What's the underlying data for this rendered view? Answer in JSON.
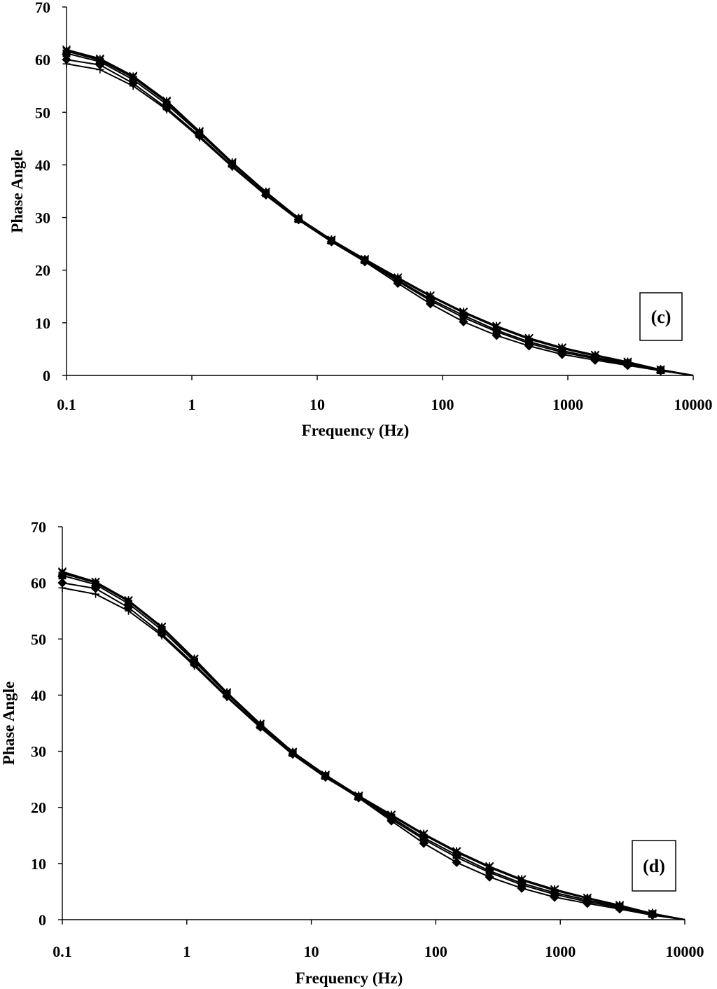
{
  "chart_data": [
    {
      "type": "line",
      "panel_label": "(c)",
      "xlabel": "Frequency (Hz)",
      "ylabel": "Phase Angle",
      "xscale": "log",
      "xlim": [
        0.1,
        10000
      ],
      "ylim": [
        0,
        70
      ],
      "x_ticks": [
        "0.1",
        "1",
        "10",
        "100",
        "1000",
        "10000"
      ],
      "y_ticks": [
        "0",
        "10",
        "20",
        "30",
        "40",
        "50",
        "60",
        "70"
      ],
      "grid": false,
      "legend": "none",
      "x": [
        0.1,
        0.185,
        0.34,
        0.63,
        1.15,
        2.1,
        3.9,
        7.1,
        13,
        24,
        44,
        80,
        147,
        270,
        490,
        900,
        1650,
        3000,
        5500,
        10000
      ],
      "series": [
        {
          "marker": "diamond",
          "values": [
            60.0,
            59.0,
            55.5,
            50.8,
            45.5,
            39.8,
            34.3,
            29.6,
            25.4,
            21.6,
            17.5,
            13.6,
            10.2,
            7.6,
            5.6,
            4.0,
            2.9,
            1.9,
            0.9,
            0.0
          ]
        },
        {
          "marker": "square",
          "values": [
            61.2,
            59.6,
            56.2,
            51.5,
            46.0,
            40.2,
            34.6,
            29.7,
            25.6,
            21.9,
            18.1,
            14.5,
            11.4,
            8.6,
            6.4,
            4.7,
            3.4,
            2.3,
            1.0,
            0.0
          ]
        },
        {
          "marker": "triangle",
          "values": [
            61.6,
            59.9,
            56.6,
            51.9,
            46.2,
            40.3,
            34.8,
            29.8,
            25.7,
            22.0,
            18.4,
            15.0,
            11.9,
            9.2,
            6.9,
            5.1,
            3.7,
            2.5,
            1.1,
            0.0
          ]
        },
        {
          "marker": "x",
          "values": [
            61.9,
            60.2,
            56.9,
            52.2,
            46.4,
            40.5,
            34.9,
            29.9,
            25.8,
            22.1,
            18.6,
            15.2,
            12.1,
            9.4,
            7.1,
            5.3,
            3.9,
            2.6,
            1.1,
            0.0
          ]
        },
        {
          "marker": "star",
          "values": [
            61.6,
            60.0,
            56.7,
            52.0,
            46.3,
            40.4,
            34.8,
            29.8,
            25.7,
            22.0,
            18.5,
            15.1,
            12.0,
            9.3,
            7.0,
            5.2,
            3.8,
            2.5,
            1.1,
            0.0
          ]
        },
        {
          "marker": "plus",
          "values": [
            59.2,
            58.1,
            55.0,
            50.5,
            45.2,
            39.6,
            34.2,
            29.5,
            25.4,
            21.8,
            17.9,
            14.2,
            11.0,
            8.3,
            6.1,
            4.4,
            3.2,
            2.1,
            0.9,
            0.0
          ]
        }
      ]
    },
    {
      "type": "line",
      "panel_label": "(d)",
      "xlabel": "Frequency (Hz)",
      "ylabel": "Phase Angle",
      "xscale": "log",
      "xlim": [
        0.1,
        10000
      ],
      "ylim": [
        0,
        70
      ],
      "x_ticks": [
        "0.1",
        "1",
        "10",
        "100",
        "1000",
        "10000"
      ],
      "y_ticks": [
        "0",
        "10",
        "20",
        "30",
        "40",
        "50",
        "60",
        "70"
      ],
      "grid": false,
      "legend": "none",
      "x": [
        0.1,
        0.185,
        0.34,
        0.63,
        1.15,
        2.1,
        3.9,
        7.1,
        13,
        24,
        44,
        80,
        147,
        270,
        490,
        900,
        1650,
        3000,
        5500,
        10000
      ],
      "series": [
        {
          "marker": "diamond",
          "values": [
            60.0,
            59.0,
            55.6,
            50.9,
            45.5,
            39.8,
            34.3,
            29.5,
            25.4,
            21.7,
            17.6,
            13.6,
            10.2,
            7.6,
            5.6,
            4.0,
            2.9,
            1.9,
            0.8,
            0.0
          ]
        },
        {
          "marker": "square",
          "values": [
            61.3,
            59.7,
            56.3,
            51.6,
            46.0,
            40.2,
            34.6,
            29.7,
            25.6,
            21.9,
            18.2,
            14.6,
            11.5,
            8.7,
            6.5,
            4.8,
            3.5,
            2.3,
            1.0,
            0.0
          ]
        },
        {
          "marker": "triangle",
          "values": [
            61.7,
            60.0,
            56.7,
            52.0,
            46.3,
            40.4,
            34.8,
            29.8,
            25.7,
            22.0,
            18.5,
            15.1,
            12.0,
            9.3,
            7.0,
            5.2,
            3.8,
            2.5,
            1.1,
            0.0
          ]
        },
        {
          "marker": "x",
          "values": [
            62.0,
            60.2,
            56.9,
            52.2,
            46.5,
            40.5,
            34.9,
            29.9,
            25.8,
            22.1,
            18.7,
            15.3,
            12.2,
            9.5,
            7.2,
            5.4,
            3.9,
            2.6,
            1.1,
            0.0
          ]
        },
        {
          "marker": "star",
          "values": [
            61.8,
            60.1,
            56.8,
            52.1,
            46.4,
            40.4,
            34.8,
            29.8,
            25.7,
            22.0,
            18.6,
            15.2,
            12.1,
            9.4,
            7.1,
            5.3,
            3.8,
            2.5,
            1.1,
            0.0
          ]
        },
        {
          "marker": "plus",
          "values": [
            59.1,
            58.0,
            55.0,
            50.6,
            45.2,
            39.6,
            34.2,
            29.4,
            25.3,
            21.8,
            17.9,
            14.3,
            11.1,
            8.4,
            6.2,
            4.5,
            3.2,
            2.1,
            0.9,
            0.0
          ]
        }
      ]
    }
  ]
}
